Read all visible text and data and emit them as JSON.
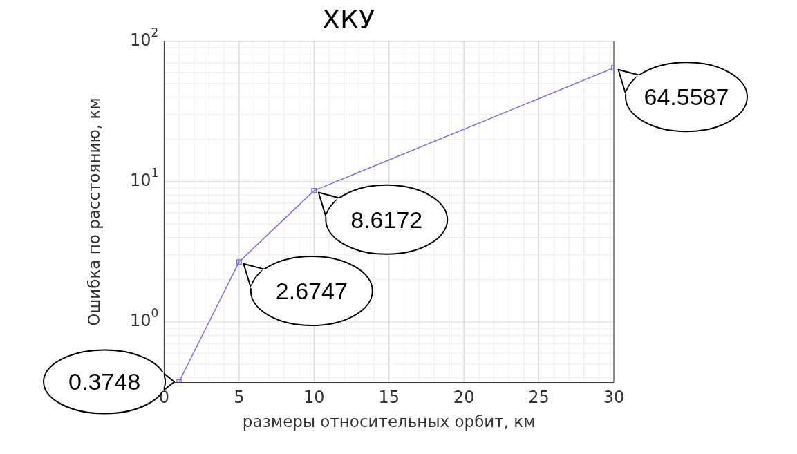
{
  "chart_data": {
    "type": "line",
    "title": "ХКУ",
    "xlabel": "размеры относительных орбит, км",
    "ylabel": "Ошибка по расстоянию, км",
    "x": [
      1,
      5,
      10,
      30
    ],
    "series": [
      {
        "color": "#7b6ef0",
        "values": [
          0.3748,
          2.6747,
          8.6172,
          64.5587
        ]
      }
    ],
    "xlim": [
      0,
      30
    ],
    "xticks": [
      0,
      5,
      10,
      15,
      20,
      25,
      30
    ],
    "ylim": [
      0.37,
      100
    ],
    "yticks": [
      {
        "value": 1,
        "label": "10$^{0}$"
      },
      {
        "value": 10,
        "label": "10$^{1}$"
      },
      {
        "value": 100,
        "label": "10$^{2}$"
      }
    ],
    "log": "y",
    "grid": true,
    "marker": "square",
    "line_style": "solid",
    "data_labels": true,
    "legend": false
  }
}
